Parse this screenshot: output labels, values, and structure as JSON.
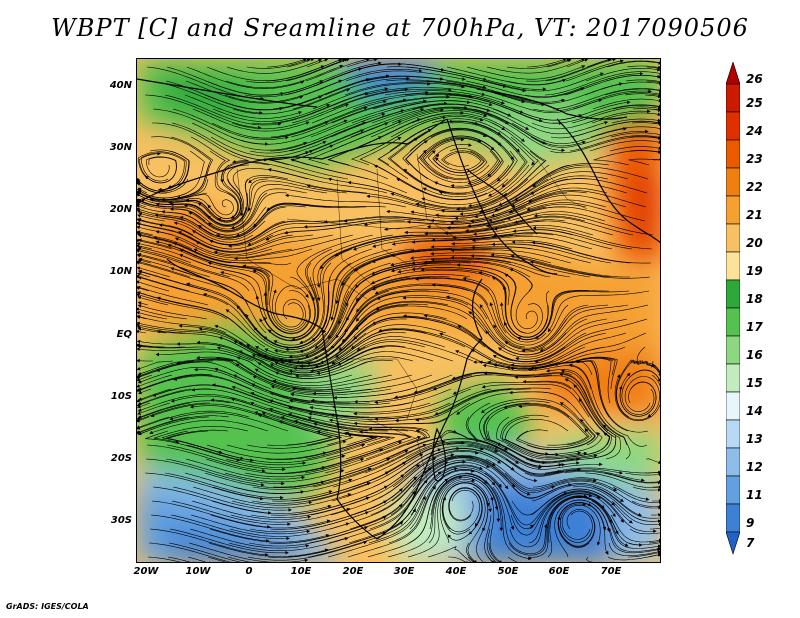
{
  "title": "WBPT [C] and Sreamline at 700hPa, VT: 2017090506",
  "credit": "GrADS: IGES/COLA",
  "axes": {
    "lat_labels": [
      "40N",
      "30N",
      "20N",
      "10N",
      "EQ",
      "10S",
      "20S",
      "30S"
    ],
    "lon_labels": [
      "20W",
      "10W",
      "0",
      "10E",
      "20E",
      "30E",
      "40E",
      "50E",
      "60E",
      "70E"
    ]
  },
  "colorbar": {
    "labels": [
      "26",
      "25",
      "24",
      "23",
      "22",
      "21",
      "20",
      "19",
      "18",
      "17",
      "16",
      "15",
      "14",
      "13",
      "12",
      "11",
      "9",
      "7"
    ],
    "colors": [
      "#b00000",
      "#cc1a00",
      "#e03000",
      "#ec5a00",
      "#f07f12",
      "#f5a030",
      "#f8c060",
      "#fde39a",
      "#2fa83a",
      "#55c24f",
      "#8cd882",
      "#c2ecbe",
      "#e6f6fb",
      "#b8d8f3",
      "#8fbde9",
      "#62a0e0",
      "#3d80d6",
      "#1f63c7"
    ]
  }
}
